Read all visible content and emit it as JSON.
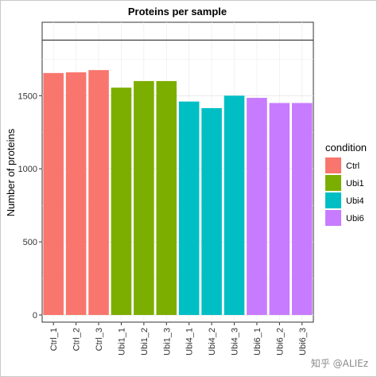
{
  "chart_data": {
    "type": "bar",
    "title": "Proteins per sample",
    "xlabel": "",
    "ylabel": "Number of proteins",
    "ylim": [
      0,
      1900
    ],
    "yticks": [
      0,
      500,
      1000,
      1500
    ],
    "reference_line": 1880,
    "grid": true,
    "legend_position": "right",
    "legend_title": "condition",
    "categories": [
      "Ctrl_1",
      "Ctrl_2",
      "Ctrl_3",
      "Ubi1_1",
      "Ubi1_2",
      "Ubi1_3",
      "Ubi4_1",
      "Ubi4_2",
      "Ubi4_3",
      "Ubi6_1",
      "Ubi6_2",
      "Ubi6_3"
    ],
    "values": [
      1655,
      1660,
      1675,
      1555,
      1600,
      1600,
      1460,
      1415,
      1500,
      1485,
      1450,
      1450
    ],
    "groups": [
      "Ctrl",
      "Ctrl",
      "Ctrl",
      "Ubi1",
      "Ubi1",
      "Ubi1",
      "Ubi4",
      "Ubi4",
      "Ubi4",
      "Ubi6",
      "Ubi6",
      "Ubi6"
    ],
    "legend": [
      {
        "name": "Ctrl",
        "color": "#F8766D"
      },
      {
        "name": "Ubi1",
        "color": "#7CAE00"
      },
      {
        "name": "Ubi4",
        "color": "#00BFC4"
      },
      {
        "name": "Ubi6",
        "color": "#C77CFF"
      }
    ]
  },
  "watermark": "知乎 @ALIEz"
}
